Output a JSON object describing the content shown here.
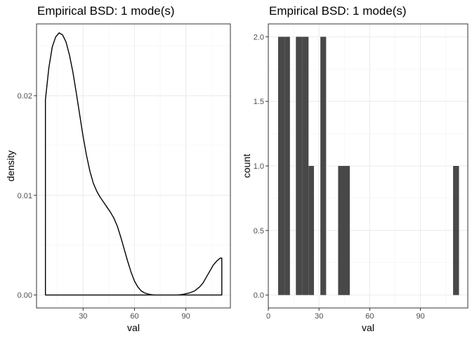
{
  "chart_data": [
    {
      "type": "area",
      "title": "Empirical BSD: 1 mode(s)",
      "xlabel": "val",
      "ylabel": "density",
      "xlim": [
        2.8,
        116
      ],
      "ylim": [
        -0.0013,
        0.0272
      ],
      "x_ticks": [
        30,
        60,
        90
      ],
      "x_tick_labels": [
        "30",
        "60",
        "90"
      ],
      "y_ticks": [
        0,
        0.01,
        0.02
      ],
      "y_tick_labels": [
        "0.00",
        "0.01",
        "0.02"
      ],
      "grid": true,
      "series": [
        {
          "x": [
            8,
            10,
            12,
            14,
            16,
            18,
            20,
            22,
            24,
            26,
            28,
            30,
            32,
            34,
            36,
            38,
            40,
            42,
            44,
            46,
            48,
            50,
            52,
            54,
            56,
            58,
            60,
            62,
            64,
            66,
            68,
            70,
            72,
            75,
            80,
            85,
            88,
            92,
            95,
            98,
            100,
            102,
            104,
            106,
            108,
            110,
            111
          ],
          "y": [
            0.0196,
            0.0228,
            0.0249,
            0.0259,
            0.0263,
            0.0261,
            0.0254,
            0.0241,
            0.0224,
            0.0203,
            0.0181,
            0.0159,
            0.014,
            0.0124,
            0.0112,
            0.0104,
            0.0098,
            0.0093,
            0.0088,
            0.0083,
            0.0077,
            0.0069,
            0.0058,
            0.0046,
            0.0034,
            0.0023,
            0.0014,
            0.0008,
            0.0004,
            0.0002,
            0.0001,
            3e-05,
            0.0,
            0.0,
            0.0,
            0.0,
            5e-05,
            0.0002,
            0.0004,
            0.0008,
            0.0012,
            0.0018,
            0.0024,
            0.003,
            0.0034,
            0.0037,
            0.0037
          ]
        }
      ]
    },
    {
      "type": "bar",
      "title": "Empirical BSD: 1 mode(s)",
      "xlabel": "val",
      "ylabel": "count",
      "xlim": [
        0,
        118
      ],
      "ylim": [
        -0.1,
        2.1
      ],
      "x_ticks": [
        0,
        30,
        60,
        90
      ],
      "x_tick_labels": [
        "0",
        "30",
        "60",
        "90"
      ],
      "y_ticks": [
        0,
        0.5,
        1,
        1.5,
        2
      ],
      "y_tick_labels": [
        "0.0",
        "0.5",
        "1.0",
        "1.5",
        "2.0"
      ],
      "grid": true,
      "bars": [
        {
          "x0": 5.8,
          "x1": 9.8,
          "count": 2
        },
        {
          "x0": 9.8,
          "x1": 12.8,
          "count": 2
        },
        {
          "x0": 16.3,
          "x1": 20.3,
          "count": 2
        },
        {
          "x0": 20.3,
          "x1": 23.8,
          "count": 2
        },
        {
          "x0": 23.8,
          "x1": 27.0,
          "count": 1
        },
        {
          "x0": 30.8,
          "x1": 34.2,
          "count": 2
        },
        {
          "x0": 41.3,
          "x1": 48.2,
          "count": 1
        },
        {
          "x0": 109.3,
          "x1": 112.8,
          "count": 1
        }
      ]
    }
  ]
}
